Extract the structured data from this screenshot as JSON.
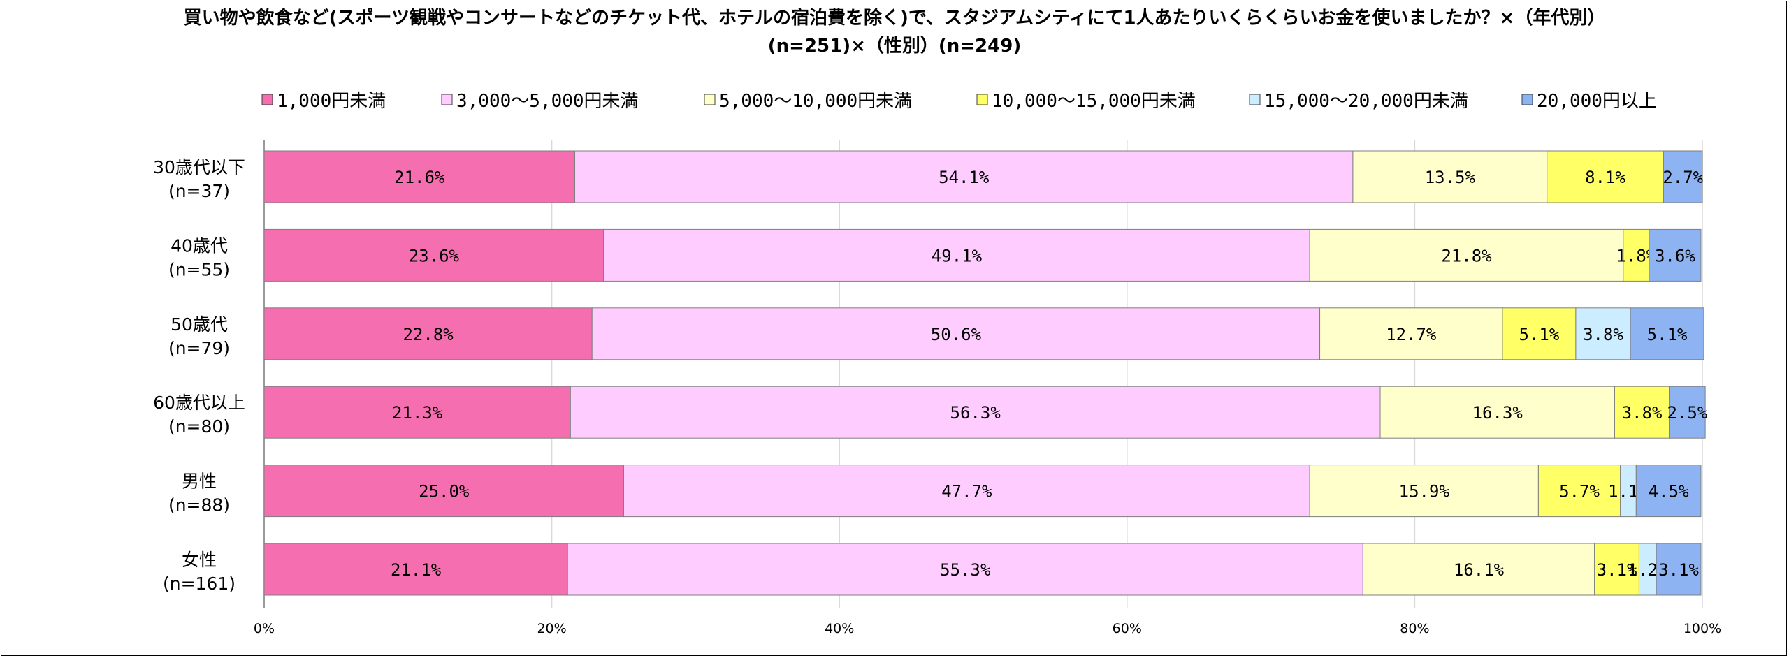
{
  "chart_data": {
    "type": "bar",
    "orientation": "horizontal",
    "stacked": true,
    "title_line1": "買い物や飲食など(スポーツ観戦やコンサートなどのチケット代、ホテルの宿泊費を除く)で、スタジアムシティにて1人あたりいくらくらいお金を使いましたか？×（年代別）",
    "title_line2": "(n=251)×（性別）(n=249)",
    "categories": [
      [
        "30歳代以下",
        "(n=37)"
      ],
      [
        "40歳代",
        "(n=55)"
      ],
      [
        "50歳代",
        "(n=79)"
      ],
      [
        "60歳代以上",
        "(n=80)"
      ],
      [
        "男性",
        "(n=88)"
      ],
      [
        "女性",
        "(n=161)"
      ]
    ],
    "series": [
      {
        "name": "1,000円未満",
        "color": "#f56fb0",
        "values": [
          21.6,
          23.6,
          22.8,
          21.3,
          25.0,
          21.1
        ]
      },
      {
        "name": "3,000～5,000円未満",
        "color": "#ffccff",
        "values": [
          54.1,
          49.1,
          50.6,
          56.3,
          47.7,
          55.3
        ]
      },
      {
        "name": "5,000～10,000円未満",
        "color": "#ffffcc",
        "values": [
          13.5,
          21.8,
          12.7,
          16.3,
          15.9,
          16.1
        ]
      },
      {
        "name": "10,000～15,000円未満",
        "color": "#ffff66",
        "values": [
          8.1,
          1.8,
          5.1,
          3.8,
          5.7,
          3.1
        ]
      },
      {
        "name": "15,000～20,000円未満",
        "color": "#ccecff",
        "values": [
          0,
          0,
          3.8,
          0,
          1.1,
          1.2
        ]
      },
      {
        "name": "20,000円以上",
        "color": "#8db3f2",
        "values": [
          2.7,
          3.6,
          5.1,
          2.5,
          4.5,
          3.1
        ]
      }
    ],
    "x_ticks": [
      "0%",
      "20%",
      "40%",
      "60%",
      "80%",
      "100%"
    ],
    "xlim": [
      0,
      100
    ],
    "grid": true,
    "legend_position": "top"
  }
}
